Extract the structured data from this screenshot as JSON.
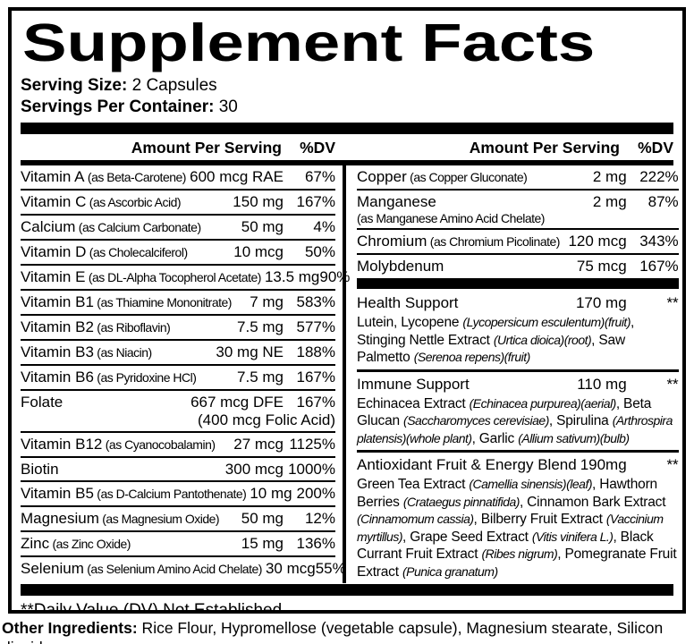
{
  "label": {
    "title": "Supplement Facts",
    "serving_size": {
      "label": "Serving Size:",
      "value": "2 Capsules"
    },
    "servings_per_container": {
      "label": "Servings Per Container:",
      "value": "30"
    },
    "column_header": {
      "amount": "Amount Per Serving",
      "dv": "%DV"
    },
    "left_rows": [
      {
        "name": "Vitamin A",
        "form": "(as Beta-Carotene)",
        "amount": "600 mcg RAE",
        "dv": "67%"
      },
      {
        "name": "Vitamin C",
        "form": "(as Ascorbic Acid)",
        "amount": "150 mg",
        "dv": "167%"
      },
      {
        "name": "Calcium",
        "form": "(as Calcium Carbonate)",
        "amount": "50 mg",
        "dv": "4%"
      },
      {
        "name": "Vitamin D",
        "form": "(as Cholecalciferol)",
        "amount": "10 mcg",
        "dv": "50%"
      },
      {
        "name": "Vitamin E",
        "form": "(as DL-Alpha Tocopherol Acetate)",
        "amount": "13.5 mg",
        "dv": "90%"
      },
      {
        "name": "Vitamin B1",
        "form": "(as Thiamine Mononitrate)",
        "amount": "7 mg",
        "dv": "583%"
      },
      {
        "name": "Vitamin B2",
        "form": "(as Riboflavin)",
        "amount": "7.5 mg",
        "dv": "577%"
      },
      {
        "name": "Vitamin B3",
        "form": "(as Niacin)",
        "amount": "30 mg NE",
        "dv": "188%"
      },
      {
        "name": "Vitamin B6",
        "form": "(as Pyridoxine HCl)",
        "amount": "7.5 mg",
        "dv": "167%"
      },
      {
        "name": "Folate",
        "form": "",
        "amount": "667 mcg DFE",
        "dv": "167%",
        "amount2": "(400 mcg Folic Acid)"
      },
      {
        "name": "Vitamin B12",
        "form": "(as Cyanocobalamin)",
        "amount": "27 mcg",
        "dv": "1125%"
      },
      {
        "name": "Biotin",
        "form": "",
        "amount": "300 mcg",
        "dv": "1000%"
      },
      {
        "name": "Vitamin B5",
        "form": "(as D-Calcium Pantothenate)",
        "amount": "10 mg",
        "dv": "200%"
      },
      {
        "name": "Magnesium",
        "form": "(as Magnesium Oxide)",
        "amount": "50 mg",
        "dv": "12%"
      },
      {
        "name": "Zinc",
        "form": "(as Zinc Oxide)",
        "amount": "15 mg",
        "dv": "136%"
      },
      {
        "name": "Selenium",
        "form": "(as Selenium Amino Acid Chelate)",
        "amount": "30 mcg",
        "dv": "55%"
      }
    ],
    "right_minerals": [
      {
        "name": "Copper",
        "form": "(as Copper Gluconate)",
        "amount": "2 mg",
        "dv": "222%"
      },
      {
        "name": "Manganese",
        "form": "",
        "form_below": "(as Manganese Amino Acid Chelate)",
        "amount": "2 mg",
        "dv": "87%"
      },
      {
        "name": "Chromium",
        "form": "(as Chromium Picolinate)",
        "amount": "120 mcg",
        "dv": "343%"
      },
      {
        "name": "Molybdenum",
        "form": "",
        "amount": "75 mcg",
        "dv": "167%"
      }
    ],
    "right_blends": [
      {
        "title": "Health Support",
        "amount": "170 mg",
        "dv": "**",
        "desc": [
          {
            "t": "Lutein, Lycopene "
          },
          {
            "t": "(Lycopersicum esculentum)(fruit)",
            "it": true
          },
          {
            "t": ", Stinging Nettle Extract "
          },
          {
            "t": "(Urtica dioica)(root)",
            "it": true
          },
          {
            "t": ", Saw Palmetto "
          },
          {
            "t": "(Serenoa repens)(fruit)",
            "it": true
          }
        ]
      },
      {
        "title": "Immune Support",
        "amount": "110 mg",
        "dv": "**",
        "desc": [
          {
            "t": "Echinacea Extract "
          },
          {
            "t": "(Echinacea purpurea)(aerial)",
            "it": true
          },
          {
            "t": ", Beta Glucan "
          },
          {
            "t": "(Saccharomyces cerevisiae)",
            "it": true
          },
          {
            "t": ", Spirulina "
          },
          {
            "t": "(Arthrospira platensis)(whole plant)",
            "it": true
          },
          {
            "t": ", Garlic "
          },
          {
            "t": "(Allium sativum)(bulb)",
            "it": true
          }
        ]
      },
      {
        "title": "Antioxidant Fruit & Energy Blend",
        "amount": "190mg",
        "dv": "**",
        "desc": [
          {
            "t": "Green Tea Extract "
          },
          {
            "t": "(Camellia sinensis)(leaf)",
            "it": true
          },
          {
            "t": ", Hawthorn Berries "
          },
          {
            "t": "(Crataegus pinnatifida)",
            "it": true
          },
          {
            "t": ", Cinnamon Bark Extract "
          },
          {
            "t": "(Cinnamomum cassia)",
            "it": true
          },
          {
            "t": ", Bilberry Fruit Extract "
          },
          {
            "t": "(Vaccinium myrtillus)",
            "it": true
          },
          {
            "t": ", Grape Seed Extract "
          },
          {
            "t": "(Vitis vinifera L.)",
            "it": true
          },
          {
            "t": ", Black Currant Fruit Extract "
          },
          {
            "t": "(Ribes nigrum)",
            "it": true
          },
          {
            "t": ", Pomegranate Fruit Extract "
          },
          {
            "t": "(Punica granatum)",
            "it": true
          }
        ]
      }
    ],
    "dv_note": "**Daily Value (DV) Not Established",
    "other_ingredients": {
      "label": "Other Ingredients:",
      "text": " Rice Flour, Hypromellose (vegetable capsule), Magnesium stearate, Silicon dioxide."
    }
  },
  "colors": {
    "ink": "#000000",
    "paper": "#ffffff"
  }
}
